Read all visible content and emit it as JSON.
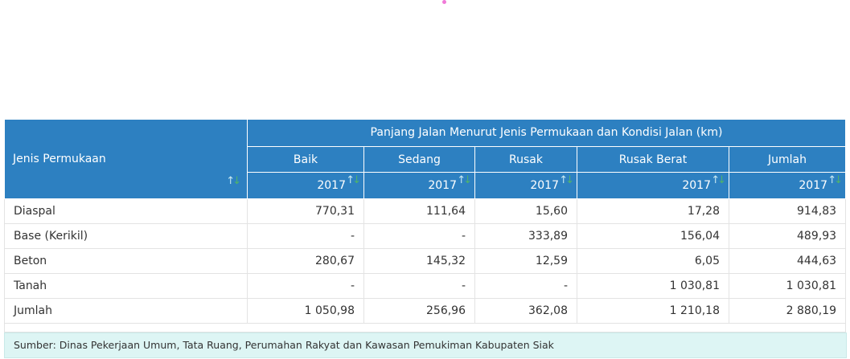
{
  "table": {
    "stub_header": "Jenis Permukaan",
    "group_header": "Panjang Jalan Menurut Jenis Permukaan dan Kondisi Jalan (km)",
    "columns": [
      "Baik",
      "Sedang",
      "Rusak",
      "Rusak Berat",
      "Jumlah"
    ],
    "year": "2017",
    "sort_icon": "sort-arrows-icon",
    "rows": [
      {
        "label": "Diaspal",
        "values": [
          "770,31",
          "111,64",
          "15,60",
          "17,28",
          "914,83"
        ]
      },
      {
        "label": "Base (Kerikil)",
        "values": [
          "-",
          "-",
          "333,89",
          "156,04",
          "489,93"
        ]
      },
      {
        "label": "Beton",
        "values": [
          "280,67",
          "145,32",
          "12,59",
          "6,05",
          "444,63"
        ]
      },
      {
        "label": "Tanah",
        "values": [
          "-",
          "-",
          "-",
          "1 030,81",
          "1 030,81"
        ]
      },
      {
        "label": "Jumlah",
        "values": [
          "1 050,98",
          "256,96",
          "362,08",
          "1 210,18",
          "2 880,19"
        ]
      }
    ]
  },
  "source_note": "Sumber: Dinas Pekerjaan Umum, Tata Ruang, Perumahan Rakyat dan Kawasan Pemukiman Kabupaten Siak",
  "colors": {
    "header_bg": "#2d80c1",
    "source_bg": "#ddf5f4",
    "dot": "#f07ad8"
  }
}
